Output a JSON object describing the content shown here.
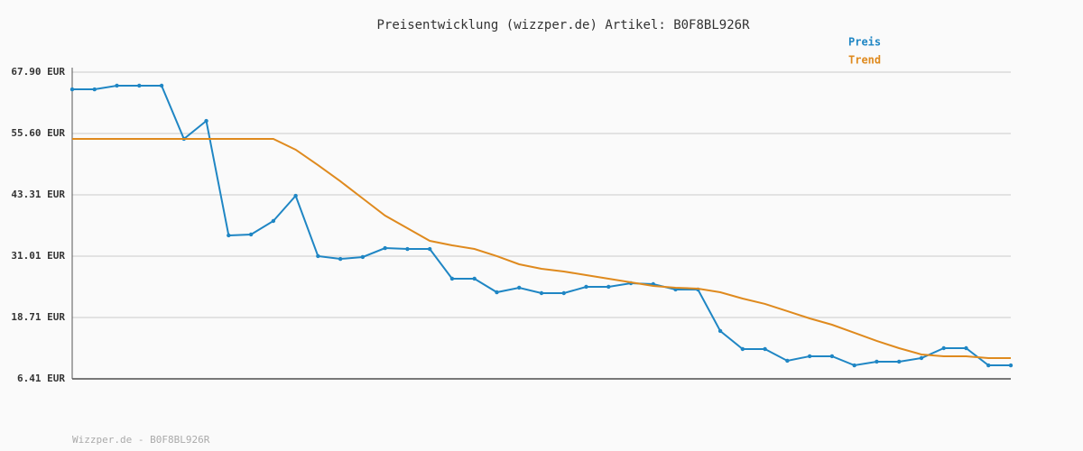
{
  "chart_data": {
    "type": "line",
    "title": "Preisentwicklung (wizzper.de) Artikel: B0F8BL926R",
    "footer": "Wizzper.de - B0F8BL926R",
    "ylim": [
      6.41,
      67.9
    ],
    "yticks": [
      {
        "value": 6.41,
        "label": "6.41 EUR"
      },
      {
        "value": 18.71,
        "label": "18.71 EUR"
      },
      {
        "value": 31.01,
        "label": "31.01 EUR"
      },
      {
        "value": 43.31,
        "label": "43.31 EUR"
      },
      {
        "value": 55.6,
        "label": "55.60 EUR"
      },
      {
        "value": 67.9,
        "label": "67.90 EUR"
      }
    ],
    "grid": true,
    "legend": "top-right",
    "series": [
      {
        "name": "Preis",
        "color": "#1f86c4",
        "markers": true,
        "values": [
          64.46,
          64.46,
          65.19,
          65.19,
          65.19,
          54.52,
          58.13,
          35.17,
          35.35,
          38.06,
          43.12,
          31.01,
          30.46,
          30.83,
          32.63,
          32.45,
          32.45,
          26.49,
          26.49,
          23.77,
          24.68,
          23.59,
          23.59,
          24.86,
          24.86,
          25.58,
          25.4,
          24.32,
          24.32,
          16.0,
          12.38,
          12.38,
          10.03,
          10.94,
          10.94,
          9.12,
          9.85,
          9.85,
          10.57,
          12.56,
          12.56,
          9.12,
          9.12
        ]
      },
      {
        "name": "Trend",
        "color": "#df8a1e",
        "markers": false,
        "values": [
          54.52,
          54.52,
          54.52,
          54.52,
          54.52,
          54.52,
          54.52,
          54.52,
          54.52,
          54.52,
          52.35,
          49.27,
          46.02,
          42.58,
          39.14,
          36.61,
          34.08,
          33.18,
          32.45,
          31.01,
          29.38,
          28.47,
          27.93,
          27.21,
          26.49,
          25.76,
          25.04,
          24.68,
          24.5,
          23.77,
          22.51,
          21.43,
          19.98,
          18.53,
          17.26,
          15.64,
          14.01,
          12.56,
          11.3,
          10.94,
          10.94,
          10.57,
          10.57
        ]
      }
    ]
  }
}
